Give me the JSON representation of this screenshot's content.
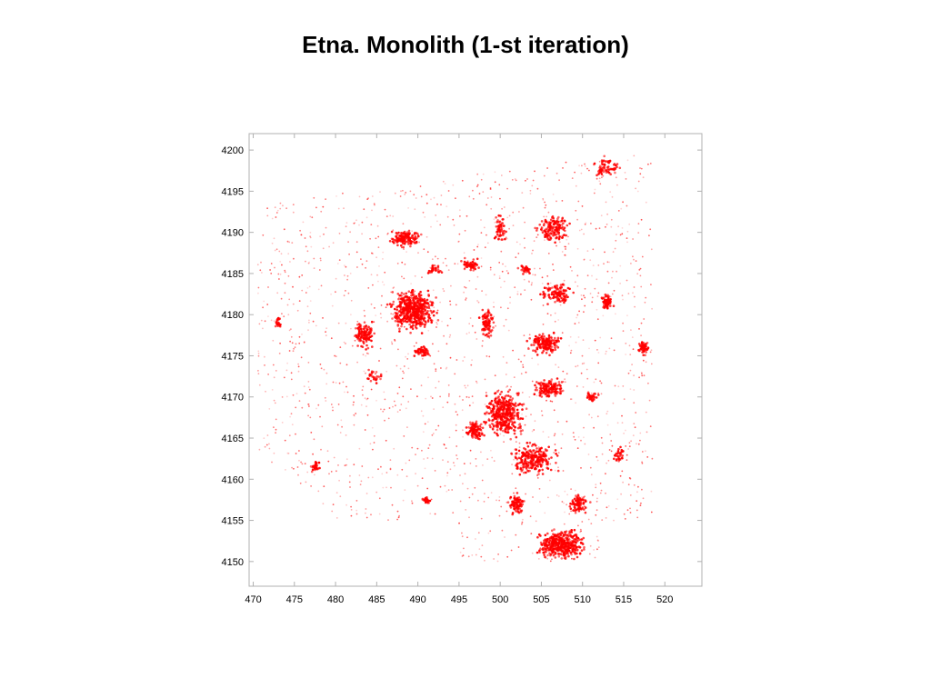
{
  "title": "Etna. Monolith (1-st iteration)",
  "colors": {
    "points": "#ff0000",
    "frame": "#b0b0b0",
    "background": "#ffffff"
  },
  "chart_data": {
    "type": "scatter",
    "title": "Etna. Monolith (1-st iteration)",
    "xlabel": "",
    "ylabel": "",
    "xlim": [
      469.5,
      524.5
    ],
    "ylim": [
      4147,
      4202
    ],
    "xticks": [
      470,
      475,
      480,
      485,
      490,
      495,
      500,
      505,
      510,
      515,
      520
    ],
    "yticks": [
      4150,
      4155,
      4160,
      4165,
      4170,
      4175,
      4180,
      4185,
      4190,
      4195,
      4200
    ],
    "grid": false,
    "legend": "none",
    "point_color": "#ff0000",
    "dense_clusters": [
      {
        "x": 489.5,
        "y": 4180.5,
        "rx": 3.5,
        "ry": 3.0,
        "n": 520
      },
      {
        "x": 483.5,
        "y": 4177.5,
        "rx": 1.5,
        "ry": 2.0,
        "n": 120
      },
      {
        "x": 488.5,
        "y": 4189.3,
        "rx": 2.5,
        "ry": 1.2,
        "n": 150
      },
      {
        "x": 490.5,
        "y": 4175.5,
        "rx": 1.5,
        "ry": 0.8,
        "n": 60
      },
      {
        "x": 498.5,
        "y": 4179.0,
        "rx": 1.2,
        "ry": 2.2,
        "n": 90
      },
      {
        "x": 496.5,
        "y": 4186.0,
        "rx": 1.5,
        "ry": 1.0,
        "n": 60
      },
      {
        "x": 500.0,
        "y": 4190.5,
        "rx": 0.8,
        "ry": 2.2,
        "n": 55
      },
      {
        "x": 505.5,
        "y": 4176.5,
        "rx": 2.5,
        "ry": 1.5,
        "n": 170
      },
      {
        "x": 507.0,
        "y": 4182.5,
        "rx": 2.5,
        "ry": 1.5,
        "n": 120
      },
      {
        "x": 506.5,
        "y": 4190.5,
        "rx": 2.5,
        "ry": 2.2,
        "n": 150
      },
      {
        "x": 513.0,
        "y": 4181.5,
        "rx": 1.0,
        "ry": 1.2,
        "n": 70
      },
      {
        "x": 517.5,
        "y": 4176.0,
        "rx": 0.8,
        "ry": 1.2,
        "n": 55
      },
      {
        "x": 500.5,
        "y": 4168.0,
        "rx": 3.0,
        "ry": 3.5,
        "n": 380
      },
      {
        "x": 506.0,
        "y": 4171.0,
        "rx": 2.5,
        "ry": 1.5,
        "n": 150
      },
      {
        "x": 504.0,
        "y": 4162.5,
        "rx": 3.5,
        "ry": 2.5,
        "n": 250
      },
      {
        "x": 507.5,
        "y": 4152.0,
        "rx": 3.5,
        "ry": 2.2,
        "n": 420
      },
      {
        "x": 502.0,
        "y": 4157.0,
        "rx": 1.5,
        "ry": 1.5,
        "n": 90
      },
      {
        "x": 509.5,
        "y": 4157.0,
        "rx": 1.5,
        "ry": 1.5,
        "n": 90
      },
      {
        "x": 497.0,
        "y": 4166.0,
        "rx": 1.5,
        "ry": 1.5,
        "n": 100
      },
      {
        "x": 491.0,
        "y": 4157.5,
        "rx": 0.6,
        "ry": 0.5,
        "n": 35
      },
      {
        "x": 473.0,
        "y": 4179.0,
        "rx": 0.4,
        "ry": 1.0,
        "n": 25
      },
      {
        "x": 477.5,
        "y": 4161.5,
        "rx": 0.8,
        "ry": 1.0,
        "n": 30
      },
      {
        "x": 514.5,
        "y": 4163.0,
        "rx": 0.8,
        "ry": 1.2,
        "n": 35
      },
      {
        "x": 513.0,
        "y": 4198.0,
        "rx": 2.0,
        "ry": 1.5,
        "n": 70
      },
      {
        "x": 511.0,
        "y": 4170.0,
        "rx": 1.0,
        "ry": 1.0,
        "n": 35
      },
      {
        "x": 484.5,
        "y": 4172.5,
        "rx": 1.2,
        "ry": 1.2,
        "n": 30
      },
      {
        "x": 492.0,
        "y": 4185.5,
        "rx": 1.0,
        "ry": 0.8,
        "n": 30
      },
      {
        "x": 503.0,
        "y": 4185.5,
        "rx": 1.0,
        "ry": 0.8,
        "n": 35
      }
    ],
    "background_scatter": {
      "n": 1800,
      "x_range": [
        470.5,
        518.5
      ],
      "y_range": [
        4149.0,
        4200.0
      ]
    }
  }
}
